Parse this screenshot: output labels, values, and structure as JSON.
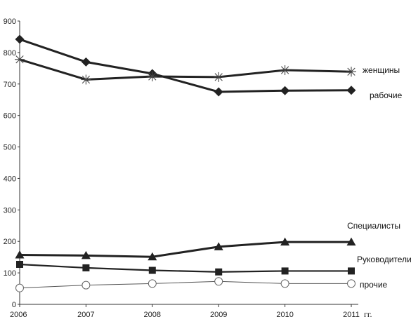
{
  "chart_data": {
    "type": "line",
    "x": [
      "2006",
      "2007",
      "2008",
      "2009",
      "2010",
      "2011"
    ],
    "x_unit": "гг.",
    "ylim": [
      0,
      900
    ],
    "yticks": [
      "0",
      "100",
      "200",
      "300",
      "400",
      "500",
      "600",
      "700",
      "800",
      "900"
    ],
    "grid": false,
    "series": [
      {
        "name": "рабочие",
        "values": [
          842,
          770,
          733,
          675,
          679,
          680
        ],
        "marker": "diamond",
        "line": "thick",
        "color": "#222222"
      },
      {
        "name": "женщины",
        "values": [
          778,
          714,
          724,
          722,
          744,
          739
        ],
        "marker": "asterisk",
        "line": "thick",
        "color": "#222222"
      },
      {
        "name": "Специалисты",
        "values": [
          157,
          155,
          151,
          183,
          198,
          198
        ],
        "marker": "triangle",
        "line": "thick",
        "color": "#222222"
      },
      {
        "name": "Руководители",
        "values": [
          127,
          116,
          108,
          103,
          106,
          106
        ],
        "marker": "square",
        "line": "medium",
        "color": "#222222"
      },
      {
        "name": "прочие",
        "values": [
          52,
          61,
          66,
          73,
          66,
          66
        ],
        "marker": "circle",
        "line": "thin",
        "color": "#555555"
      }
    ]
  }
}
